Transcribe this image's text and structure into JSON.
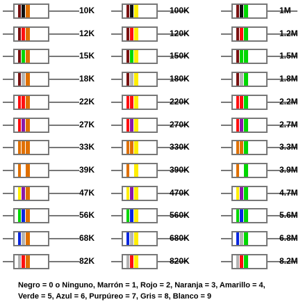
{
  "colors": {
    "outline": "#777777",
    "body": "#ffffff",
    "black": "#111111",
    "brown": "#7a1212",
    "red": "#ff1010",
    "orange": "#e07000",
    "yellow": "#ffee00",
    "green": "#00d700",
    "blue": "#0a28e0",
    "purple": "#8a1aa8",
    "gray": "#b4b4b4",
    "white": "#ffffff"
  },
  "columns": [
    {
      "resistors": [
        {
          "label": "10K",
          "bands": [
            "brown",
            "black",
            "orange"
          ]
        },
        {
          "label": "12K",
          "bands": [
            "brown",
            "red",
            "orange"
          ]
        },
        {
          "label": "15K",
          "bands": [
            "brown",
            "green",
            "orange"
          ]
        },
        {
          "label": "18K",
          "bands": [
            "brown",
            "gray",
            "orange"
          ]
        },
        {
          "label": "22K",
          "bands": [
            "red",
            "red",
            "orange"
          ]
        },
        {
          "label": "27K",
          "bands": [
            "red",
            "purple",
            "orange"
          ]
        },
        {
          "label": "33K",
          "bands": [
            "orange",
            "orange",
            "orange"
          ]
        },
        {
          "label": "39K",
          "bands": [
            "orange",
            "white",
            "orange"
          ]
        },
        {
          "label": "47K",
          "bands": [
            "yellow",
            "purple",
            "orange"
          ]
        },
        {
          "label": "56K",
          "bands": [
            "green",
            "blue",
            "orange"
          ]
        },
        {
          "label": "68K",
          "bands": [
            "blue",
            "gray",
            "orange"
          ]
        },
        {
          "label": "82K",
          "bands": [
            "gray",
            "red",
            "orange"
          ]
        }
      ]
    },
    {
      "resistors": [
        {
          "label": "100K",
          "bands": [
            "brown",
            "black",
            "yellow"
          ]
        },
        {
          "label": "120K",
          "bands": [
            "brown",
            "red",
            "yellow"
          ]
        },
        {
          "label": "150K",
          "bands": [
            "brown",
            "green",
            "yellow"
          ]
        },
        {
          "label": "180K",
          "bands": [
            "brown",
            "gray",
            "yellow"
          ]
        },
        {
          "label": "220K",
          "bands": [
            "red",
            "red",
            "yellow"
          ]
        },
        {
          "label": "270K",
          "bands": [
            "red",
            "purple",
            "yellow"
          ]
        },
        {
          "label": "330K",
          "bands": [
            "orange",
            "orange",
            "yellow"
          ]
        },
        {
          "label": "390K",
          "bands": [
            "orange",
            "white",
            "yellow"
          ]
        },
        {
          "label": "470K",
          "bands": [
            "yellow",
            "purple",
            "yellow"
          ]
        },
        {
          "label": "560K",
          "bands": [
            "green",
            "blue",
            "yellow"
          ]
        },
        {
          "label": "680K",
          "bands": [
            "blue",
            "gray",
            "yellow"
          ]
        },
        {
          "label": "820K",
          "bands": [
            "gray",
            "red",
            "yellow"
          ]
        }
      ]
    },
    {
      "resistors": [
        {
          "label": "1M",
          "bands": [
            "brown",
            "black",
            "green"
          ]
        },
        {
          "label": "1.2M",
          "bands": [
            "brown",
            "red",
            "green"
          ]
        },
        {
          "label": "1.5M",
          "bands": [
            "brown",
            "green",
            "green"
          ]
        },
        {
          "label": "1.8M",
          "bands": [
            "brown",
            "gray",
            "green"
          ]
        },
        {
          "label": "2.2M",
          "bands": [
            "red",
            "red",
            "green"
          ]
        },
        {
          "label": "2.7M",
          "bands": [
            "red",
            "purple",
            "green"
          ]
        },
        {
          "label": "3.3M",
          "bands": [
            "orange",
            "orange",
            "green"
          ]
        },
        {
          "label": "3.9M",
          "bands": [
            "orange",
            "white",
            "green"
          ]
        },
        {
          "label": "4.7M",
          "bands": [
            "yellow",
            "purple",
            "green"
          ]
        },
        {
          "label": "5.6M",
          "bands": [
            "green",
            "blue",
            "green"
          ]
        },
        {
          "label": "6.8M",
          "bands": [
            "blue",
            "gray",
            "green"
          ]
        },
        {
          "label": "8.2M",
          "bands": [
            "gray",
            "red",
            "green"
          ]
        }
      ]
    }
  ],
  "legend": {
    "line1": "Negro = 0 o Ninguno, Marrón = 1, Rojo = 2, Naranja = 3, Amarillo = 4,",
    "line2": "Verde = 5, Azul = 6, Purpúreo = 7, Gris = 8, Blanco = 9"
  }
}
